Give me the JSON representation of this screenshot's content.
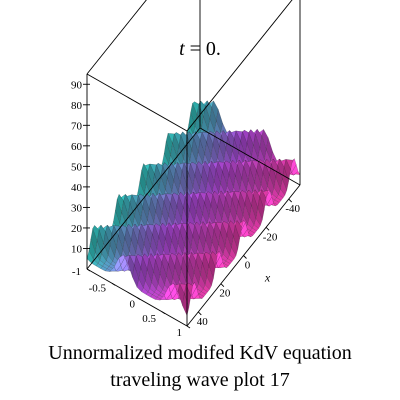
{
  "chart_data": {
    "type": "surface3d",
    "title_var": "t",
    "title_rest": " = 0.",
    "caption_line1": "Unnormalized modifed KdV equation",
    "caption_line2": "traveling wave plot 17",
    "zlabel_ticks": [
      "10",
      "20",
      "30",
      "40",
      "50",
      "60",
      "70",
      "80",
      "90"
    ],
    "y_ticks": [
      "-1",
      "-0.5",
      "0",
      "0.5",
      "1"
    ],
    "x_ticks": [
      "-40",
      "-20",
      "0",
      "20",
      "40"
    ],
    "xlabel": "x",
    "xlim": [
      -50,
      50
    ],
    "ylim": [
      -1,
      1
    ],
    "zlim": [
      0,
      95
    ],
    "wave": {
      "peak_z": 17,
      "base_z": 4,
      "wavelength": 22,
      "ridges_across_y": 2
    },
    "surface_colors": {
      "front": "#e83aa8",
      "middle": "#b04be0",
      "back": "#2ec9c0"
    },
    "grid": false,
    "box": true
  }
}
